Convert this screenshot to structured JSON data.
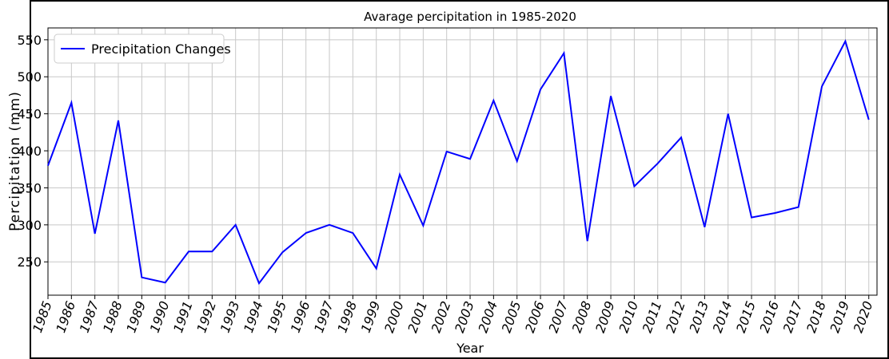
{
  "chart_data": {
    "type": "line",
    "title": "Avarage percipitation in 1985-2020",
    "x_label": "Year",
    "y_label": "Percipitation (mm)",
    "x": [
      1985,
      1986,
      1987,
      1988,
      1989,
      1990,
      1991,
      1992,
      1993,
      1994,
      1995,
      1996,
      1997,
      1998,
      1999,
      2000,
      2001,
      2002,
      2003,
      2004,
      2005,
      2006,
      2007,
      2008,
      2009,
      2010,
      2011,
      2012,
      2013,
      2014,
      2015,
      2016,
      2017,
      2018,
      2019,
      2020
    ],
    "series": [
      {
        "name": "Precipitation Changes",
        "color": "#0000ff",
        "values": [
          380,
          465,
          288,
          441,
          229,
          222,
          264,
          264,
          300,
          221,
          263,
          289,
          300,
          289,
          241,
          368,
          299,
          399,
          389,
          468,
          386,
          483,
          532,
          278,
          474,
          352,
          383,
          418,
          297,
          450,
          310,
          316,
          324,
          487,
          548,
          442
        ]
      }
    ],
    "xlim": [
      1985,
      2020.35
    ],
    "xticks": [
      1985,
      1986,
      1987,
      1988,
      1989,
      1990,
      1991,
      1992,
      1993,
      1994,
      1995,
      1996,
      1997,
      1998,
      1999,
      2000,
      2001,
      2002,
      2003,
      2004,
      2005,
      2006,
      2007,
      2008,
      2009,
      2010,
      2011,
      2012,
      2013,
      2014,
      2015,
      2016,
      2017,
      2018,
      2019,
      2020
    ],
    "ylim": [
      205,
      566
    ],
    "yticks": [
      250,
      300,
      350,
      400,
      450,
      500,
      550
    ],
    "grid": true,
    "legend": "upper left"
  }
}
